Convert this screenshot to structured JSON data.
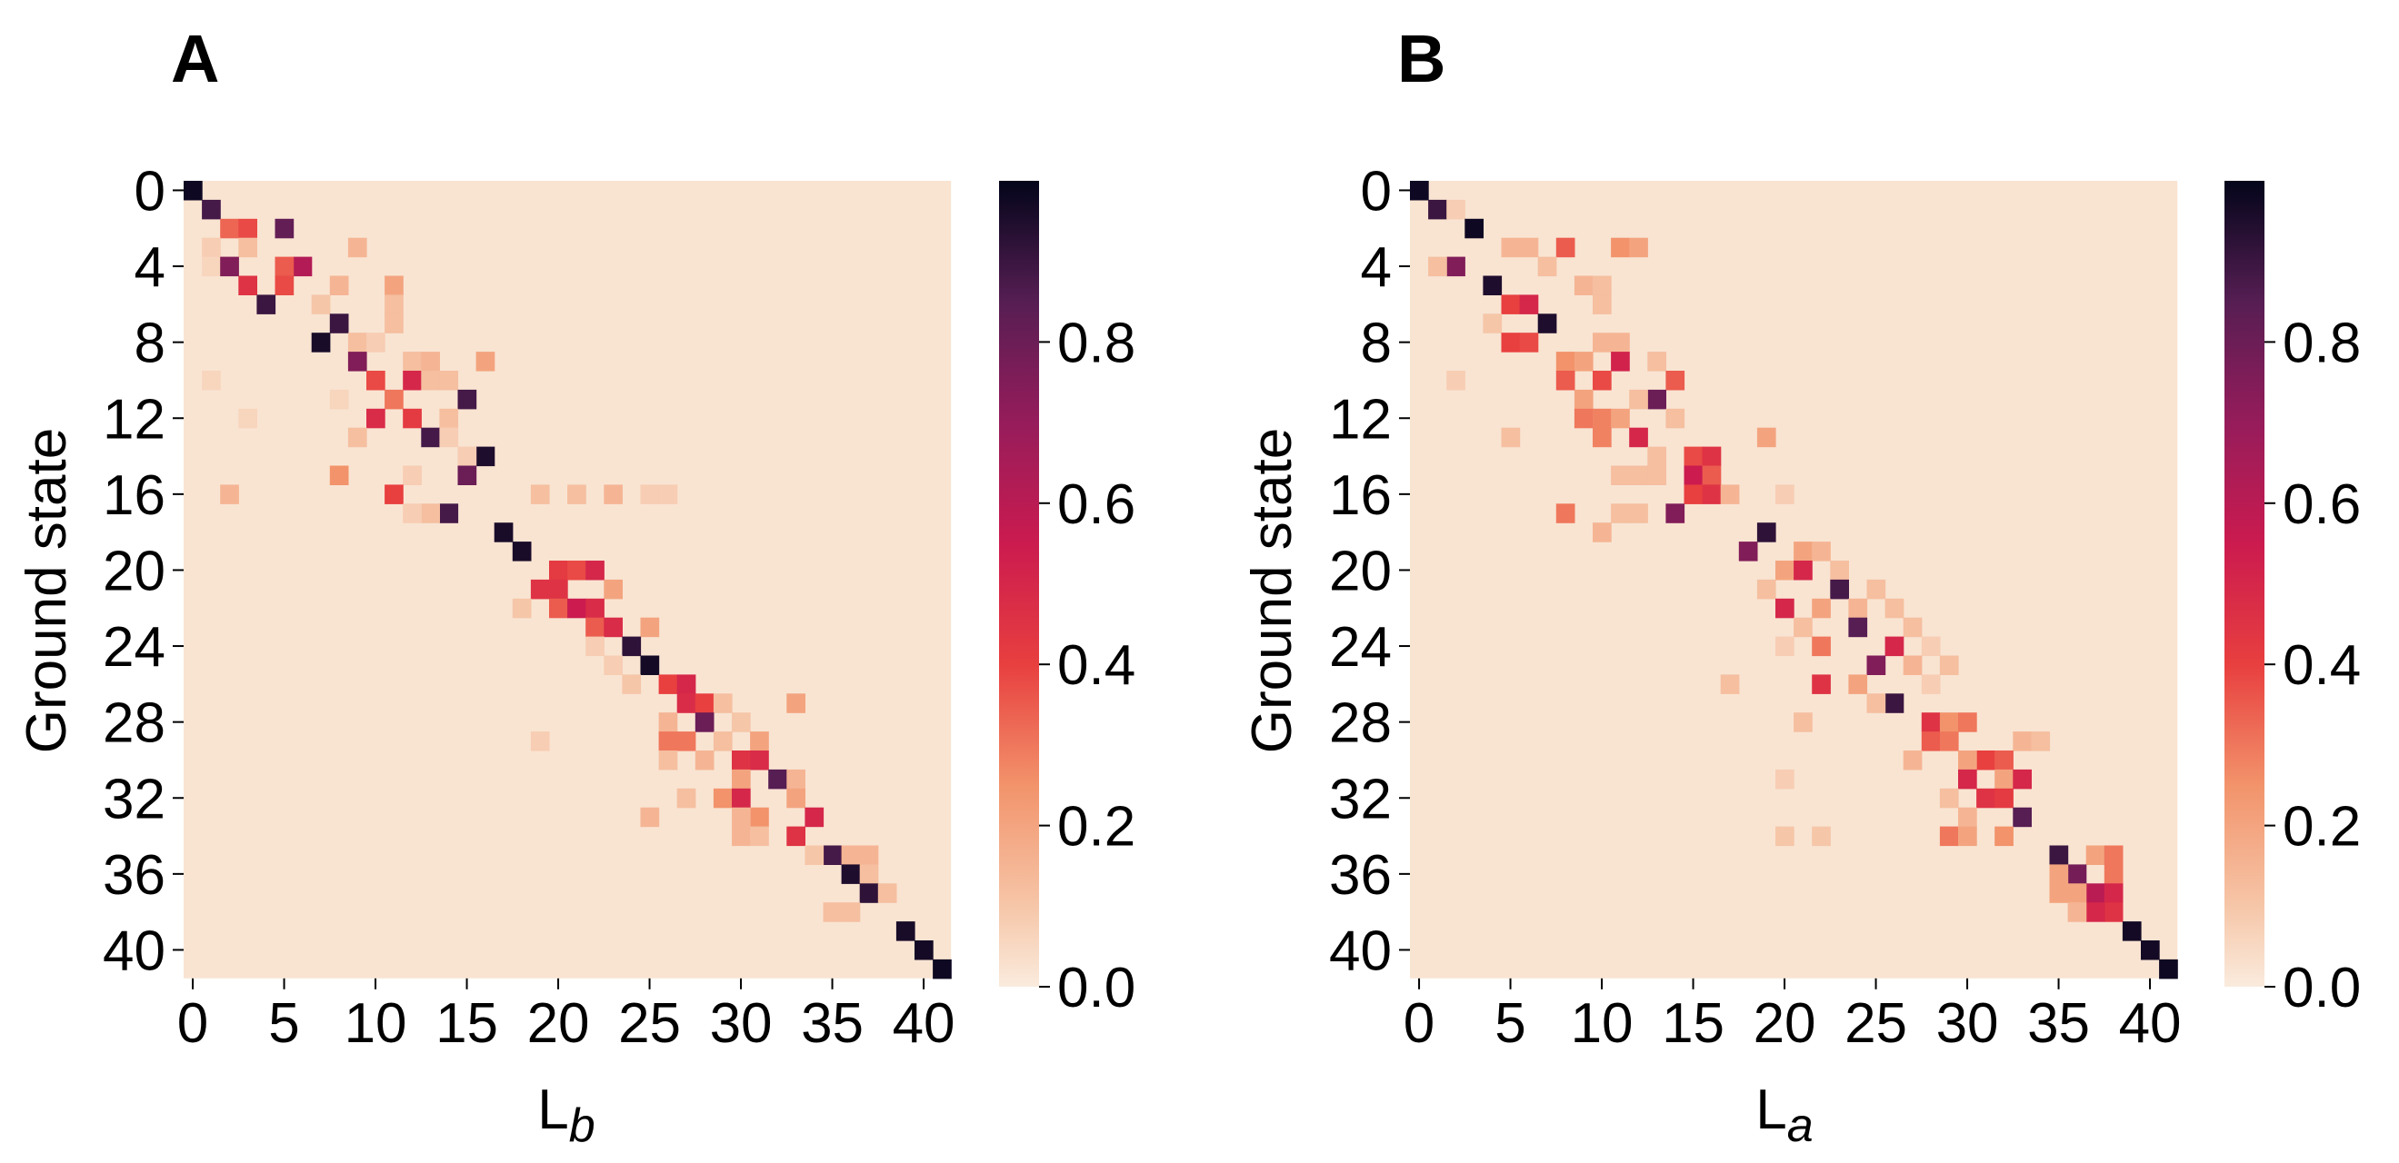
{
  "chart_data": [
    {
      "type": "heatmap",
      "panel_label": "A",
      "ylabel": "Ground state",
      "xlabel": {
        "main": "L",
        "sub": "b"
      },
      "size": 42,
      "x_ticks": [
        "0",
        "5",
        "10",
        "15",
        "20",
        "25",
        "30",
        "35",
        "40"
      ],
      "y_ticks": [
        "0",
        "4",
        "8",
        "12",
        "16",
        "20",
        "24",
        "28",
        "32",
        "36",
        "40"
      ],
      "colorbar_ticks": [
        "0.0",
        "0.2",
        "0.4",
        "0.6",
        "0.8"
      ],
      "value_range": [
        0,
        1
      ],
      "cells": [
        [
          0,
          0,
          0.98
        ],
        [
          1,
          1,
          0.88
        ],
        [
          2,
          2,
          0.33
        ],
        [
          2,
          3,
          0.38
        ],
        [
          2,
          5,
          0.82
        ],
        [
          3,
          3,
          0.12
        ],
        [
          3,
          9,
          0.15
        ],
        [
          3,
          1,
          0.08
        ],
        [
          4,
          1,
          0.06
        ],
        [
          4,
          2,
          0.75
        ],
        [
          4,
          6,
          0.62
        ],
        [
          4,
          5,
          0.35
        ],
        [
          5,
          3,
          0.45
        ],
        [
          5,
          5,
          0.38
        ],
        [
          5,
          8,
          0.15
        ],
        [
          5,
          11,
          0.2
        ],
        [
          6,
          4,
          0.9
        ],
        [
          6,
          7,
          0.1
        ],
        [
          6,
          11,
          0.12
        ],
        [
          7,
          8,
          0.9
        ],
        [
          7,
          11,
          0.12
        ],
        [
          8,
          7,
          0.96
        ],
        [
          8,
          9,
          0.12
        ],
        [
          8,
          10,
          0.08
        ],
        [
          9,
          9,
          0.75
        ],
        [
          9,
          12,
          0.12
        ],
        [
          9,
          13,
          0.15
        ],
        [
          9,
          16,
          0.2
        ],
        [
          10,
          10,
          0.38
        ],
        [
          10,
          12,
          0.5
        ],
        [
          10,
          13,
          0.12
        ],
        [
          10,
          14,
          0.12
        ],
        [
          10,
          1,
          0.06
        ],
        [
          11,
          11,
          0.3
        ],
        [
          11,
          15,
          0.88
        ],
        [
          11,
          8,
          0.06
        ],
        [
          12,
          10,
          0.48
        ],
        [
          12,
          12,
          0.42
        ],
        [
          12,
          14,
          0.12
        ],
        [
          12,
          3,
          0.06
        ],
        [
          13,
          13,
          0.88
        ],
        [
          13,
          9,
          0.12
        ],
        [
          13,
          14,
          0.08
        ],
        [
          14,
          16,
          0.95
        ],
        [
          14,
          15,
          0.08
        ],
        [
          15,
          8,
          0.25
        ],
        [
          15,
          15,
          0.8
        ],
        [
          15,
          12,
          0.08
        ],
        [
          16,
          2,
          0.15
        ],
        [
          16,
          11,
          0.4
        ],
        [
          16,
          19,
          0.12
        ],
        [
          16,
          21,
          0.12
        ],
        [
          16,
          23,
          0.15
        ],
        [
          16,
          25,
          0.08
        ],
        [
          16,
          26,
          0.08
        ],
        [
          17,
          14,
          0.88
        ],
        [
          17,
          13,
          0.12
        ],
        [
          17,
          12,
          0.08
        ],
        [
          18,
          17,
          0.96
        ],
        [
          19,
          18,
          0.96
        ],
        [
          20,
          20,
          0.42
        ],
        [
          20,
          21,
          0.38
        ],
        [
          20,
          22,
          0.5
        ],
        [
          21,
          19,
          0.45
        ],
        [
          21,
          20,
          0.45
        ],
        [
          21,
          23,
          0.2
        ],
        [
          22,
          20,
          0.35
        ],
        [
          22,
          21,
          0.55
        ],
        [
          22,
          22,
          0.48
        ],
        [
          22,
          18,
          0.1
        ],
        [
          23,
          22,
          0.35
        ],
        [
          23,
          23,
          0.48
        ],
        [
          23,
          25,
          0.2
        ],
        [
          24,
          24,
          0.92
        ],
        [
          24,
          22,
          0.08
        ],
        [
          25,
          25,
          0.97
        ],
        [
          25,
          23,
          0.08
        ],
        [
          26,
          26,
          0.4
        ],
        [
          26,
          27,
          0.5
        ],
        [
          26,
          24,
          0.1
        ],
        [
          27,
          27,
          0.48
        ],
        [
          27,
          28,
          0.4
        ],
        [
          27,
          29,
          0.12
        ],
        [
          27,
          33,
          0.2
        ],
        [
          28,
          28,
          0.8
        ],
        [
          28,
          26,
          0.15
        ],
        [
          28,
          30,
          0.1
        ],
        [
          29,
          26,
          0.3
        ],
        [
          29,
          27,
          0.3
        ],
        [
          29,
          29,
          0.12
        ],
        [
          29,
          31,
          0.2
        ],
        [
          29,
          19,
          0.08
        ],
        [
          30,
          30,
          0.45
        ],
        [
          30,
          31,
          0.48
        ],
        [
          30,
          26,
          0.12
        ],
        [
          30,
          28,
          0.15
        ],
        [
          31,
          32,
          0.85
        ],
        [
          31,
          30,
          0.2
        ],
        [
          31,
          33,
          0.15
        ],
        [
          32,
          29,
          0.25
        ],
        [
          32,
          30,
          0.5
        ],
        [
          32,
          33,
          0.2
        ],
        [
          32,
          27,
          0.12
        ],
        [
          33,
          34,
          0.5
        ],
        [
          33,
          31,
          0.25
        ],
        [
          33,
          30,
          0.15
        ],
        [
          33,
          25,
          0.15
        ],
        [
          34,
          33,
          0.45
        ],
        [
          34,
          30,
          0.15
        ],
        [
          34,
          31,
          0.12
        ],
        [
          35,
          35,
          0.88
        ],
        [
          35,
          34,
          0.1
        ],
        [
          35,
          36,
          0.15
        ],
        [
          35,
          37,
          0.15
        ],
        [
          36,
          36,
          0.95
        ],
        [
          36,
          37,
          0.12
        ],
        [
          37,
          37,
          0.92
        ],
        [
          37,
          38,
          0.12
        ],
        [
          38,
          35,
          0.12
        ],
        [
          38,
          36,
          0.12
        ],
        [
          39,
          39,
          0.96
        ],
        [
          40,
          40,
          0.97
        ],
        [
          41,
          41,
          0.98
        ]
      ]
    },
    {
      "type": "heatmap",
      "panel_label": "B",
      "ylabel": "Ground state",
      "xlabel": {
        "main": "L",
        "sub": "a"
      },
      "size": 42,
      "x_ticks": [
        "0",
        "5",
        "10",
        "15",
        "20",
        "25",
        "30",
        "35",
        "40"
      ],
      "y_ticks": [
        "0",
        "4",
        "8",
        "12",
        "16",
        "20",
        "24",
        "28",
        "32",
        "36",
        "40"
      ],
      "colorbar_ticks": [
        "0.0",
        "0.2",
        "0.4",
        "0.6",
        "0.8"
      ],
      "value_range": [
        0,
        1
      ],
      "cells": [
        [
          0,
          0,
          0.98
        ],
        [
          1,
          1,
          0.9
        ],
        [
          1,
          2,
          0.08
        ],
        [
          2,
          3,
          0.98
        ],
        [
          3,
          5,
          0.15
        ],
        [
          3,
          6,
          0.15
        ],
        [
          3,
          8,
          0.35
        ],
        [
          3,
          11,
          0.25
        ],
        [
          3,
          12,
          0.2
        ],
        [
          4,
          2,
          0.75
        ],
        [
          4,
          1,
          0.12
        ],
        [
          4,
          7,
          0.12
        ],
        [
          5,
          4,
          0.95
        ],
        [
          5,
          9,
          0.15
        ],
        [
          5,
          10,
          0.12
        ],
        [
          6,
          5,
          0.4
        ],
        [
          6,
          6,
          0.5
        ],
        [
          6,
          10,
          0.12
        ],
        [
          7,
          7,
          0.95
        ],
        [
          7,
          4,
          0.1
        ],
        [
          8,
          5,
          0.4
        ],
        [
          8,
          6,
          0.38
        ],
        [
          8,
          10,
          0.15
        ],
        [
          8,
          11,
          0.15
        ],
        [
          9,
          8,
          0.25
        ],
        [
          9,
          9,
          0.2
        ],
        [
          9,
          11,
          0.52
        ],
        [
          9,
          13,
          0.12
        ],
        [
          10,
          8,
          0.35
        ],
        [
          10,
          10,
          0.38
        ],
        [
          10,
          14,
          0.35
        ],
        [
          10,
          2,
          0.08
        ],
        [
          11,
          13,
          0.8
        ],
        [
          11,
          9,
          0.2
        ],
        [
          11,
          12,
          0.12
        ],
        [
          12,
          9,
          0.3
        ],
        [
          12,
          10,
          0.28
        ],
        [
          12,
          11,
          0.2
        ],
        [
          12,
          14,
          0.12
        ],
        [
          13,
          10,
          0.28
        ],
        [
          13,
          12,
          0.5
        ],
        [
          13,
          19,
          0.2
        ],
        [
          13,
          5,
          0.12
        ],
        [
          14,
          15,
          0.38
        ],
        [
          14,
          16,
          0.45
        ],
        [
          14,
          13,
          0.12
        ],
        [
          15,
          15,
          0.55
        ],
        [
          15,
          16,
          0.35
        ],
        [
          15,
          11,
          0.12
        ],
        [
          15,
          12,
          0.12
        ],
        [
          15,
          13,
          0.12
        ],
        [
          16,
          15,
          0.4
        ],
        [
          16,
          16,
          0.45
        ],
        [
          16,
          17,
          0.15
        ],
        [
          16,
          20,
          0.08
        ],
        [
          17,
          14,
          0.75
        ],
        [
          17,
          8,
          0.3
        ],
        [
          17,
          11,
          0.12
        ],
        [
          17,
          12,
          0.12
        ],
        [
          18,
          10,
          0.15
        ],
        [
          18,
          19,
          0.92
        ],
        [
          19,
          18,
          0.75
        ],
        [
          19,
          21,
          0.2
        ],
        [
          19,
          22,
          0.15
        ],
        [
          20,
          20,
          0.2
        ],
        [
          20,
          21,
          0.5
        ],
        [
          20,
          23,
          0.12
        ],
        [
          21,
          23,
          0.88
        ],
        [
          21,
          19,
          0.12
        ],
        [
          21,
          25,
          0.12
        ],
        [
          22,
          20,
          0.5
        ],
        [
          22,
          22,
          0.2
        ],
        [
          22,
          24,
          0.15
        ],
        [
          22,
          26,
          0.12
        ],
        [
          23,
          24,
          0.85
        ],
        [
          23,
          21,
          0.12
        ],
        [
          23,
          27,
          0.12
        ],
        [
          24,
          22,
          0.3
        ],
        [
          24,
          26,
          0.5
        ],
        [
          24,
          20,
          0.08
        ],
        [
          24,
          28,
          0.08
        ],
        [
          25,
          25,
          0.75
        ],
        [
          25,
          27,
          0.15
        ],
        [
          25,
          29,
          0.12
        ],
        [
          26,
          22,
          0.45
        ],
        [
          26,
          24,
          0.2
        ],
        [
          26,
          17,
          0.12
        ],
        [
          26,
          28,
          0.08
        ],
        [
          27,
          26,
          0.9
        ],
        [
          27,
          25,
          0.12
        ],
        [
          28,
          28,
          0.45
        ],
        [
          28,
          29,
          0.25
        ],
        [
          28,
          30,
          0.3
        ],
        [
          28,
          21,
          0.12
        ],
        [
          29,
          28,
          0.35
        ],
        [
          29,
          29,
          0.3
        ],
        [
          29,
          33,
          0.15
        ],
        [
          29,
          34,
          0.12
        ],
        [
          30,
          31,
          0.4
        ],
        [
          30,
          32,
          0.35
        ],
        [
          30,
          27,
          0.15
        ],
        [
          30,
          30,
          0.2
        ],
        [
          31,
          30,
          0.5
        ],
        [
          31,
          32,
          0.2
        ],
        [
          31,
          33,
          0.5
        ],
        [
          31,
          20,
          0.08
        ],
        [
          32,
          31,
          0.45
        ],
        [
          32,
          32,
          0.42
        ],
        [
          32,
          29,
          0.12
        ],
        [
          33,
          33,
          0.85
        ],
        [
          33,
          30,
          0.15
        ],
        [
          34,
          29,
          0.3
        ],
        [
          34,
          30,
          0.2
        ],
        [
          34,
          32,
          0.25
        ],
        [
          34,
          20,
          0.1
        ],
        [
          34,
          22,
          0.1
        ],
        [
          35,
          35,
          0.9
        ],
        [
          35,
          37,
          0.2
        ],
        [
          35,
          38,
          0.3
        ],
        [
          36,
          36,
          0.78
        ],
        [
          36,
          35,
          0.2
        ],
        [
          36,
          38,
          0.3
        ],
        [
          37,
          37,
          0.6
        ],
        [
          37,
          35,
          0.2
        ],
        [
          37,
          36,
          0.2
        ],
        [
          37,
          38,
          0.5
        ],
        [
          38,
          38,
          0.45
        ],
        [
          38,
          37,
          0.5
        ],
        [
          38,
          36,
          0.15
        ],
        [
          39,
          39,
          0.97
        ],
        [
          40,
          40,
          0.97
        ],
        [
          41,
          41,
          0.98
        ]
      ]
    }
  ]
}
